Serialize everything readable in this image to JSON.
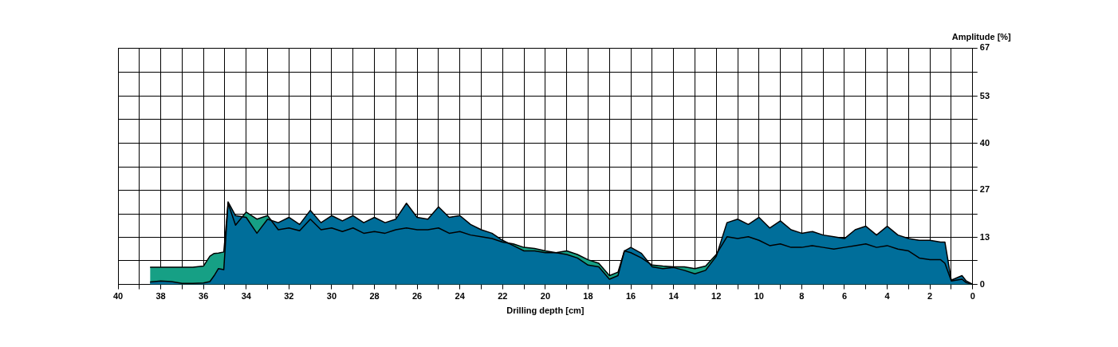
{
  "chart_data": {
    "type": "area",
    "xlabel": "Drilling depth [cm]",
    "ylabel": "Amplitude [%]",
    "x": [
      38.5,
      38,
      37.5,
      37,
      36.5,
      36,
      35.7,
      35.5,
      35.3,
      35.05,
      34.85,
      34.5,
      34,
      33.5,
      33,
      32.5,
      32,
      31.5,
      31,
      30.5,
      30,
      29.5,
      29,
      28.5,
      28,
      27.5,
      27,
      26.5,
      26,
      25.5,
      25,
      24.5,
      24,
      23.5,
      23,
      22.5,
      22,
      21.5,
      21,
      20.5,
      20,
      19.5,
      19,
      18.5,
      18,
      17.5,
      17,
      16.6,
      16.3,
      16,
      15.5,
      15,
      14.5,
      14,
      13.5,
      13,
      12.5,
      12,
      11.5,
      11,
      10.5,
      10,
      9.5,
      9,
      8.5,
      8,
      7.5,
      7,
      6.5,
      6,
      5.5,
      5,
      4.5,
      4,
      3.5,
      3,
      2.5,
      2,
      1.5,
      1.3,
      1,
      0.5,
      0.3,
      0
    ],
    "series": [
      {
        "color": "#006e9a",
        "values": [
          0.7,
          1,
          0.8,
          0.3,
          0.3,
          0.4,
          0.8,
          2.5,
          4.5,
          4.2,
          23.4,
          19.5,
          19,
          14.5,
          18.5,
          17.5,
          19,
          17,
          21,
          17.5,
          19.5,
          18,
          19.5,
          17.5,
          19,
          17.5,
          18.5,
          23,
          19,
          18.5,
          22,
          19,
          19.5,
          17,
          15.5,
          14.5,
          12.5,
          11,
          9.5,
          9.5,
          9,
          9,
          8.5,
          7.5,
          5.5,
          5,
          1.5,
          2.5,
          9.5,
          10.5,
          8.8,
          5,
          4.5,
          4.8,
          4,
          3,
          4,
          8,
          17.5,
          18.5,
          17,
          19,
          16,
          18,
          15.5,
          14.5,
          15,
          14,
          13.5,
          13,
          15.5,
          16.5,
          14,
          16.5,
          14,
          13,
          12.5,
          12.5,
          12,
          12,
          1.2,
          2.5,
          1,
          0
        ]
      },
      {
        "color": "#16a085",
        "values": [
          4.9,
          4.9,
          4.9,
          4.9,
          4.9,
          5.2,
          8,
          8.8,
          8.9,
          9.2,
          23,
          16.8,
          20.5,
          18.5,
          19.5,
          15.5,
          16,
          15.2,
          18.5,
          15.5,
          16,
          15,
          16,
          14.5,
          15,
          14.5,
          15.5,
          16,
          15.5,
          15.5,
          16,
          14.5,
          15,
          14,
          13.5,
          13,
          12,
          11.5,
          10.5,
          10.2,
          9.5,
          9,
          9.5,
          8.5,
          7,
          6,
          2.5,
          3.5,
          9.5,
          9,
          7.5,
          5.5,
          5.2,
          5,
          5,
          4.5,
          5.2,
          8.5,
          13.5,
          13,
          13.5,
          12.5,
          11,
          11.5,
          10.5,
          10.5,
          11,
          10.5,
          10,
          10.5,
          11,
          11.5,
          10.5,
          11,
          10,
          9.5,
          7.5,
          7,
          7,
          6,
          1,
          1.5,
          0.5,
          0
        ]
      }
    ],
    "xlim": [
      40,
      0
    ],
    "xticks": [
      40,
      {
        "value": 39,
        "label": null
      },
      38,
      {
        "value": 37,
        "label": null
      },
      36,
      {
        "value": 35,
        "label": null
      },
      34,
      {
        "value": 33,
        "label": null
      },
      32,
      {
        "value": 31,
        "label": null
      },
      30,
      {
        "value": 29,
        "label": null
      },
      28,
      {
        "value": 27,
        "label": null
      },
      26,
      {
        "value": 25,
        "label": null
      },
      24,
      {
        "value": 23,
        "label": null
      },
      22,
      {
        "value": 21,
        "label": null
      },
      20,
      {
        "value": 19,
        "label": null
      },
      18,
      {
        "value": 17,
        "label": null
      },
      16,
      {
        "value": 15,
        "label": null
      },
      14,
      {
        "value": 13,
        "label": null
      },
      12,
      {
        "value": 11,
        "label": null
      },
      10,
      {
        "value": 9,
        "label": null
      },
      8,
      {
        "value": 7,
        "label": null
      },
      6,
      {
        "value": 5,
        "label": null
      },
      4,
      {
        "value": 3,
        "label": null
      },
      2,
      {
        "value": 1,
        "label": null
      },
      0
    ],
    "ylim": [
      0,
      67
    ],
    "yticks": [
      0,
      {
        "value": 6.7,
        "label": null
      },
      {
        "value": 13.3,
        "label": "13"
      },
      {
        "value": 20,
        "label": null
      },
      {
        "value": 26.7,
        "label": "27"
      },
      {
        "value": 33.3,
        "label": null
      },
      40,
      {
        "value": 46.7,
        "label": null
      },
      {
        "value": 53.3,
        "label": "53"
      },
      {
        "value": 60,
        "label": null
      },
      67
    ],
    "grid": true,
    "legend": false
  }
}
